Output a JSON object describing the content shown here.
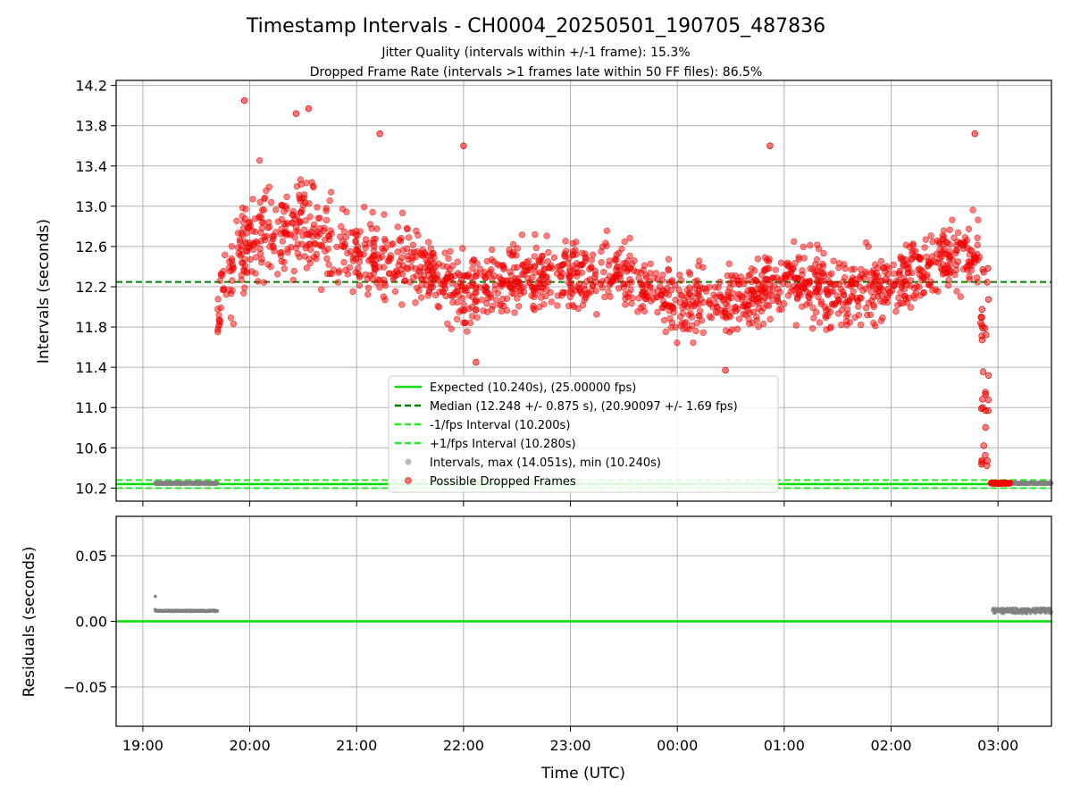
{
  "chart_data": [
    {
      "type": "scatter",
      "title": "Timestamp Intervals - CH0004_20250501_190705_487836",
      "subtitle_lines": [
        "Jitter Quality (intervals within +/-1 frame): 15.3%",
        "Dropped Frame Rate (intervals >1 frames late within 50 FF files): 86.5%"
      ],
      "xlabel": "",
      "ylabel": "Intervals (seconds)",
      "x_range_hours": [
        18.75,
        27.5
      ],
      "ylim": [
        10.07,
        14.25
      ],
      "y_ticks": [
        10.2,
        10.6,
        11.0,
        11.4,
        11.8,
        12.2,
        12.6,
        13.0,
        13.4,
        13.8,
        14.2
      ],
      "y_tick_labels": [
        "10.2",
        "10.6",
        "11.0",
        "11.4",
        "11.8",
        "12.2",
        "12.6",
        "13.0",
        "13.4",
        "13.8",
        "14.2"
      ],
      "grid": true,
      "legend_location": "lower-center",
      "reference_lines": [
        {
          "name": "Expected (10.240s), (25.00000 fps)",
          "y": 10.24,
          "color": "#00e000",
          "style": "solid"
        },
        {
          "name": "Median (12.248 +/- 0.875 s), (20.90097 +/- 1.69 fps)",
          "y": 12.248,
          "color": "#008000",
          "style": "dashed"
        },
        {
          "name": "-1/fps Interval (10.200s)",
          "y": 10.2,
          "color": "#22ee22",
          "style": "dashed"
        },
        {
          "name": "+1/fps Interval (10.280s)",
          "y": 10.28,
          "color": "#22ee22",
          "style": "dashed"
        }
      ],
      "series": [
        {
          "name": "Intervals, max (14.051s), min (10.240s)",
          "color": "#808080",
          "marker": "point",
          "segments": [
            {
              "x_start": "19:07",
              "x_end": "19:42",
              "y": 10.248
            },
            {
              "x_start": "02:57",
              "x_end": "03:30",
              "y": 10.248
            }
          ]
        },
        {
          "name": "Possible Dropped Frames",
          "color": "#ff0000",
          "marker": "point",
          "envelope": [
            {
              "x": "19:42",
              "median": 12.0,
              "spread": 0.35
            },
            {
              "x": "20:00",
              "median": 12.7,
              "spread": 0.5
            },
            {
              "x": "20:30",
              "median": 12.85,
              "spread": 0.45
            },
            {
              "x": "21:00",
              "median": 12.55,
              "spread": 0.35
            },
            {
              "x": "21:30",
              "median": 12.45,
              "spread": 0.3
            },
            {
              "x": "22:00",
              "median": 12.15,
              "spread": 0.3
            },
            {
              "x": "22:30",
              "median": 12.3,
              "spread": 0.3
            },
            {
              "x": "23:00",
              "median": 12.3,
              "spread": 0.3
            },
            {
              "x": "23:30",
              "median": 12.3,
              "spread": 0.3
            },
            {
              "x": "00:00",
              "median": 12.05,
              "spread": 0.3
            },
            {
              "x": "00:30",
              "median": 12.05,
              "spread": 0.3
            },
            {
              "x": "01:00",
              "median": 12.25,
              "spread": 0.3
            },
            {
              "x": "01:30",
              "median": 12.15,
              "spread": 0.3
            },
            {
              "x": "02:00",
              "median": 12.2,
              "spread": 0.3
            },
            {
              "x": "02:30",
              "median": 12.5,
              "spread": 0.3
            },
            {
              "x": "02:50",
              "median": 12.6,
              "spread": 0.3
            }
          ],
          "outliers": [
            {
              "x": "19:57",
              "y": 14.05
            },
            {
              "x": "20:33",
              "y": 13.97
            },
            {
              "x": "20:26",
              "y": 13.92
            },
            {
              "x": "21:13",
              "y": 13.72
            },
            {
              "x": "22:00",
              "y": 13.6
            },
            {
              "x": "00:52",
              "y": 13.6
            },
            {
              "x": "02:47",
              "y": 13.72
            },
            {
              "x": "22:07",
              "y": 11.45
            },
            {
              "x": "00:27",
              "y": 11.37
            },
            {
              "x": "02:53",
              "y": 11.13
            },
            {
              "x": "02:53",
              "y": 10.97
            },
            {
              "x": "02:54",
              "y": 10.47
            }
          ],
          "cluster": {
            "x_start": "02:56",
            "x_end": "03:07",
            "y": 10.248
          }
        }
      ],
      "dense_points": 1700
    },
    {
      "type": "scatter",
      "xlabel": "Time (UTC)",
      "ylabel": "Residuals (seconds)",
      "x_range_hours": [
        18.75,
        27.5
      ],
      "ylim": [
        -0.08,
        0.08
      ],
      "y_ticks": [
        -0.05,
        0.0,
        0.05
      ],
      "y_tick_labels": [
        "−0.05",
        "0.00",
        "0.05"
      ],
      "x_ticks": [
        19,
        20,
        21,
        22,
        23,
        24,
        25,
        26,
        27
      ],
      "x_tick_labels": [
        "19:00",
        "20:00",
        "21:00",
        "22:00",
        "23:00",
        "00:00",
        "01:00",
        "02:00",
        "03:00"
      ],
      "grid": true,
      "reference_lines": [
        {
          "y": 0.0,
          "color": "#00e000",
          "style": "solid"
        }
      ],
      "series": [
        {
          "color": "#808080",
          "marker": "point",
          "segments": [
            {
              "x_start": "19:07",
              "x_end": "19:42",
              "y": 0.008
            },
            {
              "x_start": "02:57",
              "x_end": "03:30",
              "y": 0.008
            }
          ],
          "outliers": [
            {
              "x": "19:07",
              "y": 0.019
            },
            {
              "x": "19:07",
              "y": 0.009
            }
          ]
        }
      ]
    }
  ]
}
